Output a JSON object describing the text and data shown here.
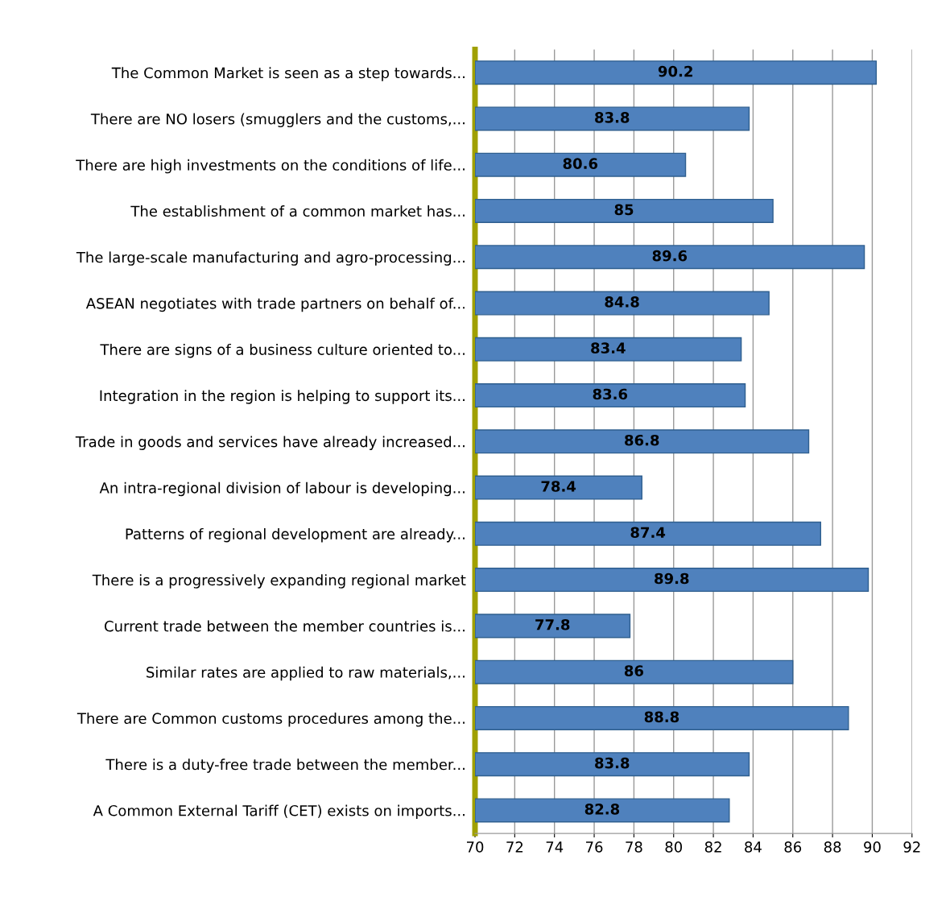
{
  "chart_data": {
    "type": "bar",
    "orientation": "horizontal",
    "categories": [
      "The Common Market is seen as a step towards...",
      "There are NO losers (smugglers and the customs,...",
      "There are high investments on the conditions of life...",
      "The establishment of a common market has...",
      "The large-scale manufacturing and agro-processing...",
      "ASEAN negotiates with trade partners on behalf of...",
      "There are signs of a business culture oriented to...",
      "Integration in the region is helping to support its...",
      "Trade in goods and services have already increased...",
      "An intra-regional division of labour is developing...",
      "Patterns of regional development are already...",
      "There is a progressively expanding regional market",
      "Current trade between the member countries is...",
      "Similar rates are applied to raw materials,...",
      "There are Common customs procedures among the...",
      "There is a duty-free trade between the member...",
      "A Common External Tariff (CET) exists on imports..."
    ],
    "values": [
      90.2,
      83.8,
      80.6,
      85,
      89.6,
      84.8,
      83.4,
      83.6,
      86.8,
      78.4,
      87.4,
      89.8,
      77.8,
      86,
      88.8,
      83.8,
      82.8
    ],
    "color": "#4f81bd",
    "xlim": [
      70,
      92
    ],
    "xticks": [
      70,
      72,
      74,
      76,
      78,
      80,
      82,
      84,
      86,
      88,
      90,
      92
    ],
    "grid": "x",
    "data_labels": true
  }
}
